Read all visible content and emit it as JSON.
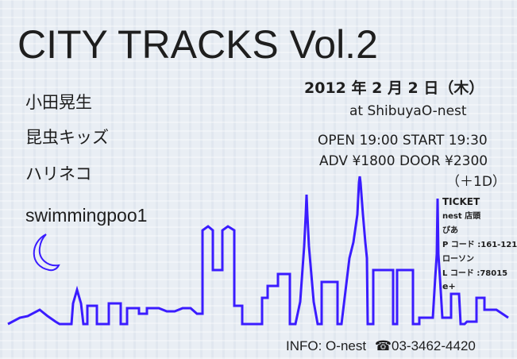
{
  "title": "CITY TRACKS Vol.2",
  "artists": [
    "小田晃生",
    "昆虫キッズ",
    "ハリネコ",
    "swimmingpoo1"
  ],
  "event": {
    "date": "2012 年 2 月 2 日（木）",
    "venue": "at ShibuyaO-nest",
    "times": "OPEN 19:00  START 19:30",
    "prices": "ADV ¥1800  DOOR ¥2300",
    "drink": "（＋1D）"
  },
  "ticket": [
    "TICKET",
    "nest 店頭",
    "ぴあ",
    "P コード :161-121",
    "ローソン",
    "L コード :78015",
    "e+"
  ],
  "footer": {
    "info": "INFO: O-nest",
    "phone_icon": "telephone-icon",
    "phone": "03-3462-4420"
  },
  "colors": {
    "skyline": "#3a1cff",
    "text": "#1e1e1e",
    "background": "#e9eef4"
  }
}
